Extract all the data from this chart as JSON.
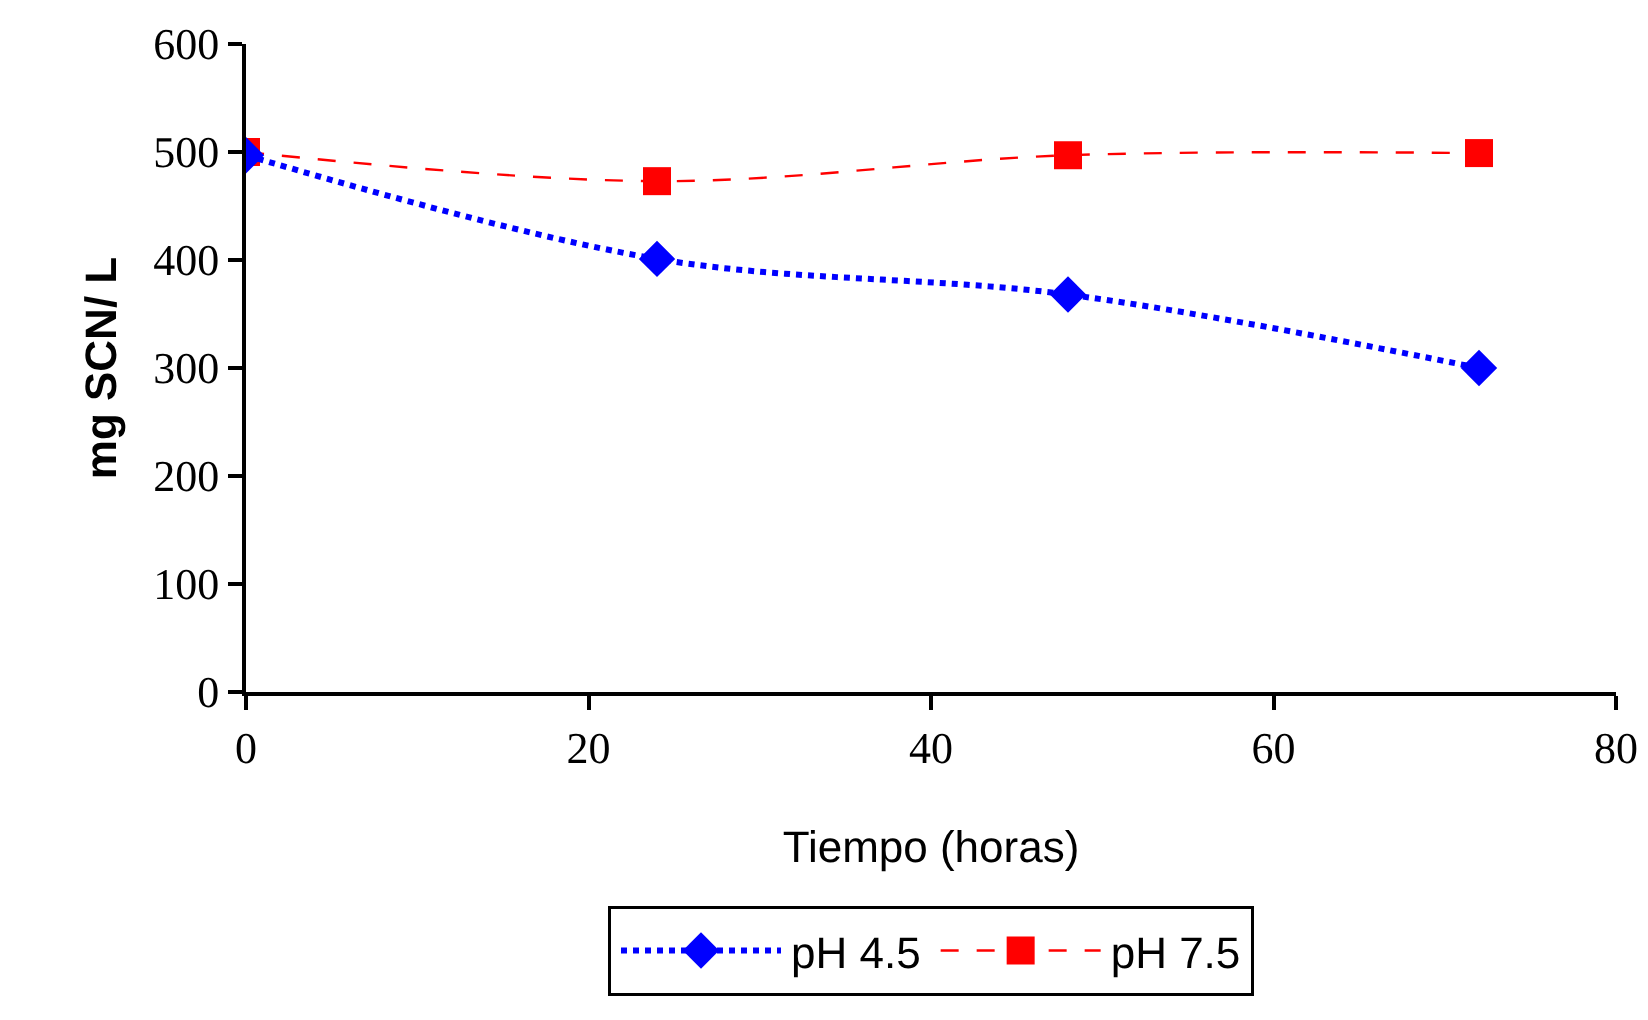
{
  "chart_data": {
    "type": "line",
    "xlabel": "Tiempo (horas)",
    "ylabel": "mg SCN/ L",
    "x": [
      0,
      24,
      48,
      72
    ],
    "series": [
      {
        "name": "pH 4.5",
        "color": "#0000ff",
        "values": [
          497,
          401,
          368,
          300
        ],
        "marker": "diamond",
        "line_style": "dotted"
      },
      {
        "name": "pH 7.5",
        "color": "#ff0000",
        "values": [
          500,
          473,
          497,
          499
        ],
        "marker": "square",
        "line_style": "dashed"
      }
    ],
    "xlim": [
      0,
      80
    ],
    "xticks": [
      0,
      20,
      40,
      60,
      80
    ],
    "ylim": [
      0,
      600
    ],
    "yticks": [
      0,
      100,
      200,
      300,
      400,
      500,
      600
    ],
    "grid": false,
    "legend": "bottom"
  }
}
